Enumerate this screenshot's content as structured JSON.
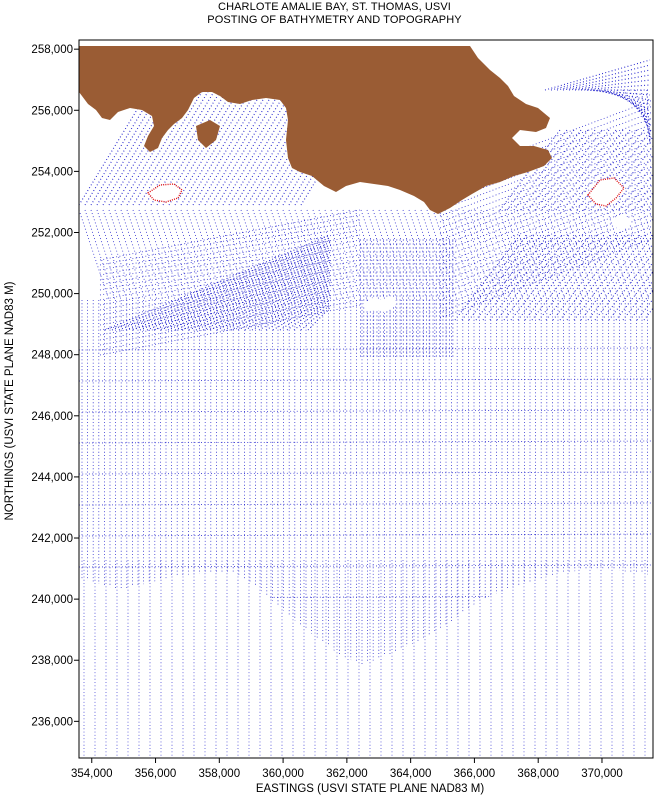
{
  "title_line1": "CHARLOTE AMALIE BAY, ST. THOMAS, USVI",
  "title_line2": "POSTING OF BATHYMETRY AND TOPOGRAPHY",
  "chart_data": {
    "type": "scatter",
    "title": "CHARLOTE AMALIE BAY, ST. THOMAS, USVI — POSTING OF BATHYMETRY AND TOPOGRAPHY",
    "xlabel": "EASTINGS (USVI STATE PLANE NAD83 M)",
    "ylabel": "NORTHINGS (USVI STATE PLANE NAD83 M)",
    "xlim": [
      353600,
      371600
    ],
    "ylim": [
      234800,
      258300
    ],
    "x_ticks": [
      354000,
      356000,
      358000,
      360000,
      362000,
      364000,
      366000,
      368000,
      370000
    ],
    "x_tick_labels": [
      "354,000",
      "356,000",
      "358,000",
      "360,000",
      "362,000",
      "364,000",
      "366,000",
      "368,000",
      "370,000"
    ],
    "y_ticks": [
      236000,
      238000,
      240000,
      242000,
      244000,
      246000,
      248000,
      250000,
      252000,
      254000,
      256000,
      258000
    ],
    "y_tick_labels": [
      "236,000",
      "238,000",
      "240,000",
      "242,000",
      "244,000",
      "246,000",
      "248,000",
      "250,000",
      "252,000",
      "254,000",
      "256,000",
      "258,000"
    ],
    "grid": false,
    "colors": {
      "land": "#9a5c34",
      "survey_points": "#1c1ccc",
      "shoreline_points": "#e01010",
      "frame": "#000000"
    }
  }
}
